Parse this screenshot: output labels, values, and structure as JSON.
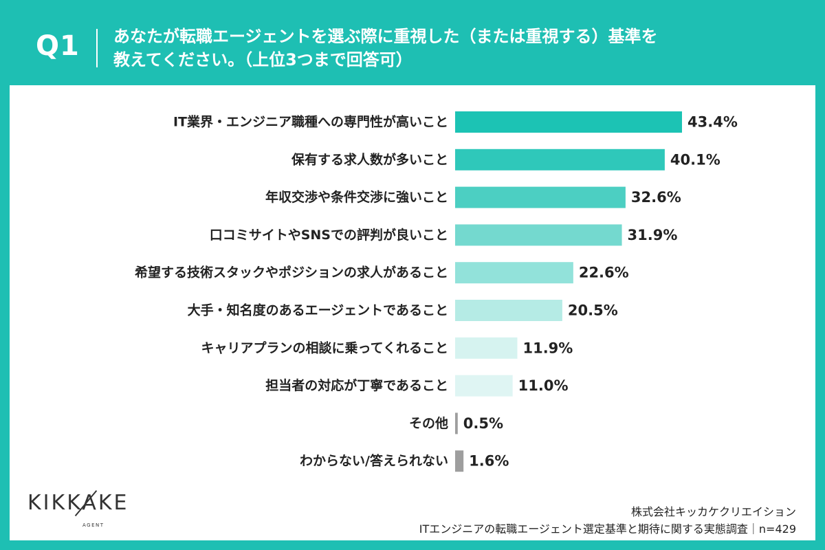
{
  "header": {
    "q_label": "Q1",
    "question_line1": "あなたが転職エージェントを選ぶ際に重視した（または重視する）基準を",
    "question_line2": "教えてください。（上位3つまで回答可）"
  },
  "logo": {
    "name": "KIKKAKE",
    "sub": "AGENT"
  },
  "source": {
    "company": "株式会社キッカケクリエイション",
    "survey": "ITエンジニアの転職エージェント選定基準と期待に関する実態調査｜n=429"
  },
  "chart_data": {
    "type": "bar",
    "orientation": "horizontal",
    "unit": "%",
    "xlim": [
      0,
      43.4
    ],
    "grid": false,
    "categories": [
      "IT業界・エンジニア職種への専門性が高いこと",
      "保有する求人数が多いこと",
      "年収交渉や条件交渉に強いこと",
      "口コミサイトやSNSでの評判が良いこと",
      "希望する技術スタックやポジションの求人があること",
      "大手・知名度のあるエージェントであること",
      "キャリアプランの相談に乗ってくれること",
      "担当者の対応が丁寧であること",
      "その他",
      "わからない/答えられない"
    ],
    "values": [
      43.4,
      40.1,
      32.6,
      31.9,
      22.6,
      20.5,
      11.9,
      11.0,
      0.5,
      1.6
    ],
    "value_labels": [
      "43.4%",
      "40.1%",
      "32.6%",
      "31.9%",
      "22.6%",
      "20.5%",
      "11.9%",
      "11.0%",
      "0.5%",
      "1.6%"
    ],
    "colors": [
      "#1cc3b4",
      "#2fc8ba",
      "#4ccfc2",
      "#74d9cf",
      "#92e2da",
      "#b5ebe5",
      "#d6f3f0",
      "#dff5f3",
      "#9e9e9e",
      "#9e9e9e"
    ]
  }
}
